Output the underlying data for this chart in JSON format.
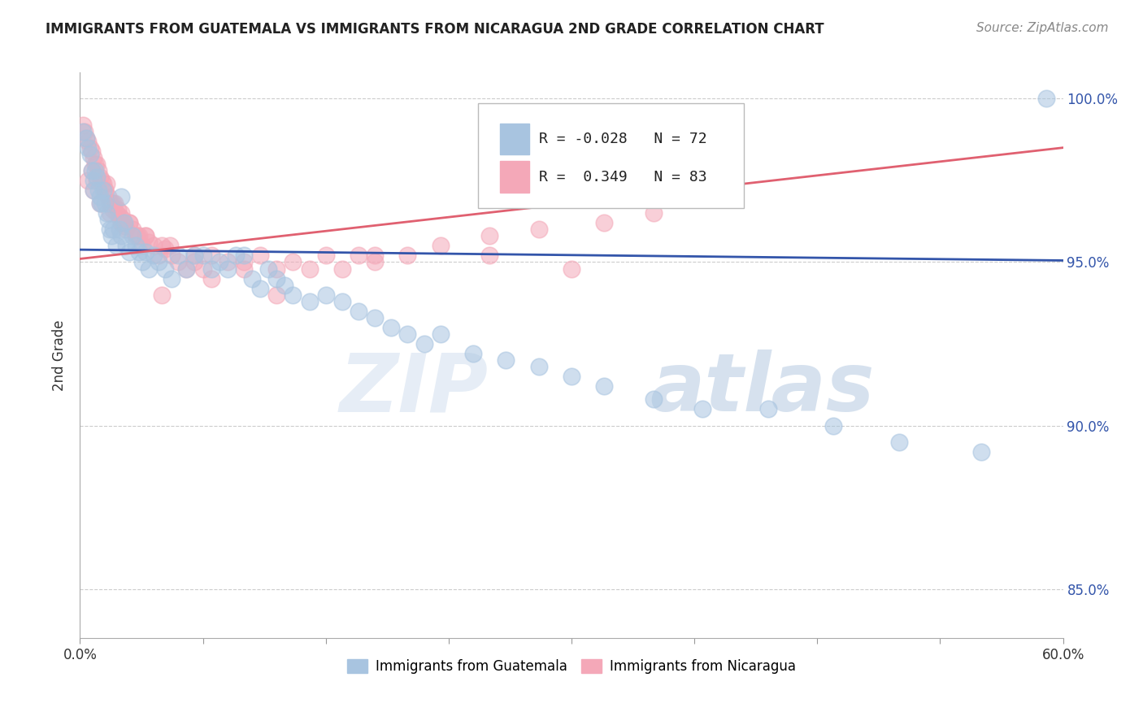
{
  "title": "IMMIGRANTS FROM GUATEMALA VS IMMIGRANTS FROM NICARAGUA 2ND GRADE CORRELATION CHART",
  "source": "Source: ZipAtlas.com",
  "ylabel": "2nd Grade",
  "legend_labels": [
    "Immigrants from Guatemala",
    "Immigrants from Nicaragua"
  ],
  "legend_r_blue": "-0.028",
  "legend_n_blue": "72",
  "legend_r_pink": "0.349",
  "legend_n_pink": "83",
  "color_blue": "#A8C4E0",
  "color_pink": "#F4A8B8",
  "line_blue": "#3355AA",
  "line_pink": "#E06070",
  "xlim": [
    0.0,
    0.6
  ],
  "ylim": [
    0.835,
    1.008
  ],
  "yticks": [
    0.85,
    0.9,
    0.95,
    1.0
  ],
  "ytick_labels": [
    "85.0%",
    "90.0%",
    "95.0%",
    "100.0%"
  ],
  "xticks": [
    0.0,
    0.075,
    0.15,
    0.225,
    0.3,
    0.375,
    0.45,
    0.525,
    0.6
  ],
  "xtick_labels": [
    "0.0%",
    "",
    "",
    "",
    "",
    "",
    "",
    "",
    "60.0%"
  ],
  "blue_scatter_x": [
    0.002,
    0.004,
    0.005,
    0.006,
    0.007,
    0.008,
    0.009,
    0.01,
    0.011,
    0.012,
    0.013,
    0.014,
    0.015,
    0.016,
    0.017,
    0.018,
    0.019,
    0.02,
    0.022,
    0.024,
    0.025,
    0.027,
    0.028,
    0.03,
    0.032,
    0.034,
    0.036,
    0.038,
    0.04,
    0.042,
    0.045,
    0.048,
    0.052,
    0.056,
    0.06,
    0.065,
    0.07,
    0.075,
    0.08,
    0.085,
    0.09,
    0.095,
    0.1,
    0.105,
    0.11,
    0.115,
    0.12,
    0.125,
    0.13,
    0.14,
    0.15,
    0.16,
    0.17,
    0.18,
    0.19,
    0.2,
    0.21,
    0.22,
    0.24,
    0.26,
    0.28,
    0.3,
    0.32,
    0.35,
    0.38,
    0.42,
    0.46,
    0.5,
    0.55,
    0.59,
    0.008,
    0.012,
    0.025
  ],
  "blue_scatter_y": [
    0.99,
    0.988,
    0.985,
    0.983,
    0.978,
    0.975,
    0.978,
    0.976,
    0.972,
    0.97,
    0.968,
    0.972,
    0.968,
    0.965,
    0.963,
    0.96,
    0.958,
    0.96,
    0.955,
    0.96,
    0.958,
    0.962,
    0.955,
    0.953,
    0.958,
    0.955,
    0.953,
    0.95,
    0.953,
    0.948,
    0.952,
    0.95,
    0.948,
    0.945,
    0.952,
    0.948,
    0.952,
    0.952,
    0.948,
    0.95,
    0.948,
    0.952,
    0.952,
    0.945,
    0.942,
    0.948,
    0.945,
    0.943,
    0.94,
    0.938,
    0.94,
    0.938,
    0.935,
    0.933,
    0.93,
    0.928,
    0.925,
    0.928,
    0.922,
    0.92,
    0.918,
    0.915,
    0.912,
    0.908,
    0.905,
    0.905,
    0.9,
    0.895,
    0.892,
    1.0,
    0.972,
    0.968,
    0.97
  ],
  "pink_scatter_x": [
    0.002,
    0.003,
    0.004,
    0.005,
    0.006,
    0.007,
    0.008,
    0.009,
    0.01,
    0.011,
    0.012,
    0.013,
    0.014,
    0.015,
    0.016,
    0.017,
    0.018,
    0.019,
    0.02,
    0.021,
    0.022,
    0.023,
    0.024,
    0.025,
    0.026,
    0.027,
    0.028,
    0.03,
    0.032,
    0.034,
    0.036,
    0.038,
    0.04,
    0.042,
    0.045,
    0.048,
    0.052,
    0.056,
    0.06,
    0.065,
    0.07,
    0.075,
    0.08,
    0.09,
    0.1,
    0.11,
    0.12,
    0.13,
    0.15,
    0.16,
    0.17,
    0.18,
    0.2,
    0.22,
    0.25,
    0.28,
    0.32,
    0.35,
    0.005,
    0.008,
    0.012,
    0.018,
    0.025,
    0.035,
    0.05,
    0.07,
    0.1,
    0.14,
    0.18,
    0.25,
    0.3,
    0.007,
    0.01,
    0.015,
    0.02,
    0.025,
    0.03,
    0.04,
    0.055,
    0.08,
    0.12,
    0.05
  ],
  "pink_scatter_y": [
    0.992,
    0.99,
    0.988,
    0.987,
    0.985,
    0.984,
    0.982,
    0.98,
    0.98,
    0.978,
    0.976,
    0.975,
    0.974,
    0.972,
    0.974,
    0.97,
    0.968,
    0.968,
    0.966,
    0.968,
    0.965,
    0.966,
    0.964,
    0.962,
    0.963,
    0.961,
    0.96,
    0.962,
    0.96,
    0.958,
    0.958,
    0.955,
    0.958,
    0.956,
    0.955,
    0.952,
    0.954,
    0.952,
    0.95,
    0.948,
    0.95,
    0.948,
    0.952,
    0.95,
    0.95,
    0.952,
    0.948,
    0.95,
    0.952,
    0.948,
    0.952,
    0.95,
    0.952,
    0.955,
    0.958,
    0.96,
    0.962,
    0.965,
    0.975,
    0.972,
    0.968,
    0.965,
    0.962,
    0.958,
    0.955,
    0.952,
    0.948,
    0.948,
    0.952,
    0.952,
    0.948,
    0.978,
    0.975,
    0.972,
    0.968,
    0.965,
    0.962,
    0.958,
    0.955,
    0.945,
    0.94,
    0.94
  ],
  "blue_line_x0": 0.0,
  "blue_line_x1": 0.6,
  "blue_line_y0": 0.9538,
  "blue_line_y1": 0.9505,
  "pink_line_x0": 0.0,
  "pink_line_x1": 0.6,
  "pink_line_y0": 0.951,
  "pink_line_y1": 0.985,
  "watermark_zip": "ZIP",
  "watermark_atlas": "atlas",
  "background_color": "#FFFFFF",
  "grid_color": "#CCCCCC",
  "title_fontsize": 12,
  "source_fontsize": 11
}
